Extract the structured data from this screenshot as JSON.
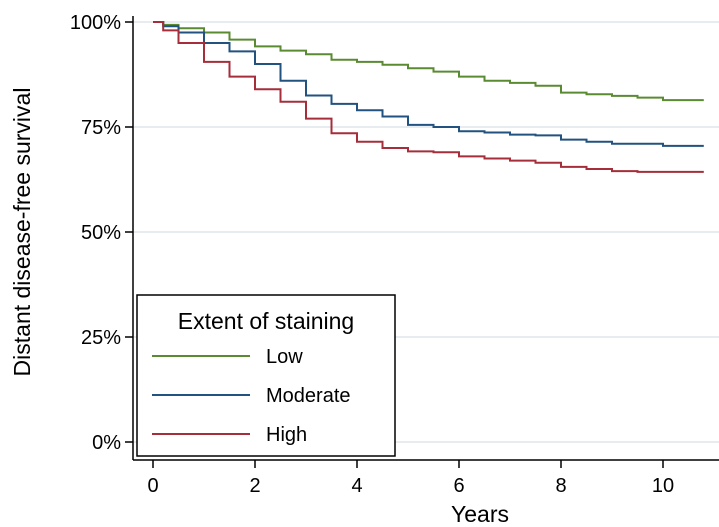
{
  "chart_data": {
    "type": "line",
    "step": true,
    "title": "",
    "xlabel": "Years",
    "ylabel": "Distant disease-free survival",
    "xlim": [
      0,
      10.8
    ],
    "ylim": [
      0,
      100
    ],
    "xticks": [
      0,
      2,
      4,
      6,
      8,
      10
    ],
    "xtick_labels": [
      "0",
      "2",
      "4",
      "6",
      "8",
      "10"
    ],
    "yticks": [
      0,
      25,
      50,
      75,
      100
    ],
    "ytick_labels": [
      "0%",
      "25%",
      "50%",
      "75%",
      "100%"
    ],
    "grid": "horizontal",
    "legend": {
      "title": "Extent of staining",
      "position": "bottom-left"
    },
    "series": [
      {
        "name": "Low",
        "color": "#5a8a32",
        "x": [
          0,
          0.2,
          0.5,
          1.0,
          1.5,
          2.0,
          2.5,
          3.0,
          3.5,
          4.0,
          4.5,
          5.0,
          5.5,
          6.0,
          6.5,
          7.0,
          7.5,
          8.0,
          8.5,
          9.0,
          9.5,
          10.0,
          10.8
        ],
        "y": [
          100,
          99.3,
          98.5,
          97.5,
          95.8,
          94.2,
          93.2,
          92.3,
          91.0,
          90.5,
          89.8,
          89.0,
          88.2,
          87.0,
          86.0,
          85.5,
          84.8,
          83.2,
          82.8,
          82.4,
          82.0,
          81.4,
          81.4
        ]
      },
      {
        "name": "Moderate",
        "color": "#22527f",
        "x": [
          0,
          0.2,
          0.5,
          1.0,
          1.5,
          2.0,
          2.5,
          3.0,
          3.5,
          4.0,
          4.5,
          5.0,
          5.5,
          6.0,
          6.5,
          7.0,
          7.5,
          8.0,
          8.5,
          9.0,
          9.5,
          10.0,
          10.8
        ],
        "y": [
          100,
          99.0,
          97.5,
          95.0,
          93.0,
          90.0,
          86.0,
          82.5,
          80.5,
          79.0,
          77.5,
          75.5,
          75.0,
          74.0,
          73.7,
          73.2,
          73.0,
          72.0,
          71.5,
          71.0,
          71.0,
          70.5,
          70.5
        ]
      },
      {
        "name": "High",
        "color": "#a52e3a",
        "x": [
          0,
          0.2,
          0.5,
          1.0,
          1.5,
          2.0,
          2.5,
          3.0,
          3.5,
          4.0,
          4.5,
          5.0,
          5.5,
          6.0,
          6.5,
          7.0,
          7.5,
          8.0,
          8.5,
          9.0,
          9.5,
          10.0,
          10.8
        ],
        "y": [
          100,
          98.0,
          95.0,
          90.5,
          87.0,
          84.0,
          81.0,
          77.0,
          73.5,
          71.5,
          70.0,
          69.2,
          69.0,
          68.0,
          67.5,
          67.0,
          66.5,
          65.5,
          65.0,
          64.5,
          64.3,
          64.3,
          64.3
        ]
      }
    ]
  }
}
